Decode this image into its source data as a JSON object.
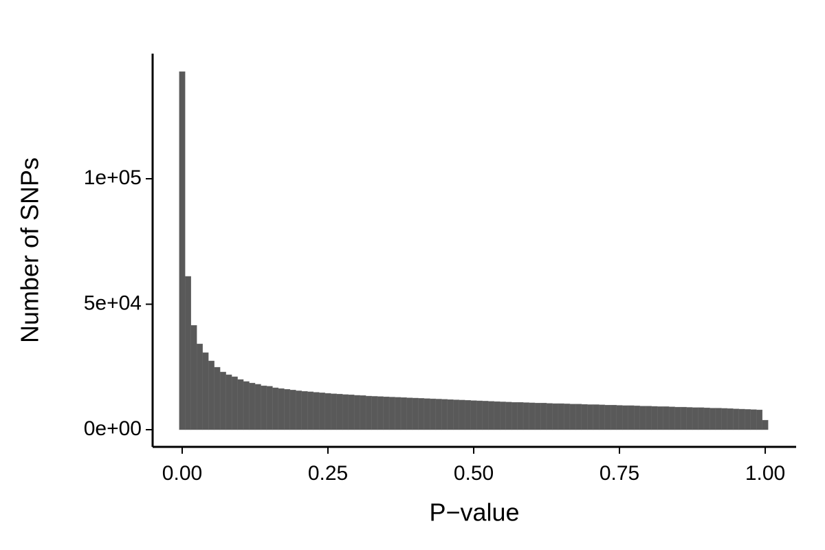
{
  "chart_data": {
    "type": "histogram",
    "x_label": "P−value",
    "y_label": "Number of SNPs",
    "color": "#595959",
    "bins": [
      -0.005,
      0.005,
      0.015,
      0.025,
      0.035,
      0.045,
      0.055,
      0.065,
      0.075,
      0.085,
      0.095,
      0.105,
      0.115,
      0.125,
      0.135,
      0.145,
      0.155,
      0.165,
      0.175,
      0.185,
      0.195,
      0.205,
      0.215,
      0.225,
      0.235,
      0.245,
      0.255,
      0.265,
      0.275,
      0.285,
      0.295,
      0.305,
      0.315,
      0.325,
      0.335,
      0.345,
      0.355,
      0.365,
      0.375,
      0.385,
      0.395,
      0.405,
      0.415,
      0.425,
      0.435,
      0.445,
      0.455,
      0.465,
      0.475,
      0.485,
      0.495,
      0.505,
      0.515,
      0.525,
      0.535,
      0.545,
      0.555,
      0.565,
      0.575,
      0.585,
      0.595,
      0.605,
      0.615,
      0.625,
      0.635,
      0.645,
      0.655,
      0.665,
      0.675,
      0.685,
      0.695,
      0.705,
      0.715,
      0.725,
      0.735,
      0.745,
      0.755,
      0.765,
      0.775,
      0.785,
      0.795,
      0.805,
      0.815,
      0.825,
      0.835,
      0.845,
      0.855,
      0.865,
      0.875,
      0.885,
      0.895,
      0.905,
      0.915,
      0.925,
      0.935,
      0.945,
      0.955,
      0.965,
      0.975,
      0.985,
      0.995,
      1.005
    ],
    "counts": [
      142700,
      61100,
      41600,
      34200,
      30700,
      27400,
      24900,
      23000,
      21900,
      21100,
      20000,
      19200,
      18600,
      18100,
      17500,
      17300,
      16700,
      16400,
      16100,
      15800,
      15500,
      15300,
      15100,
      14900,
      14700,
      14500,
      14300,
      14200,
      14000,
      13900,
      13700,
      13600,
      13400,
      13300,
      13200,
      13100,
      13000,
      12900,
      12800,
      12700,
      12600,
      12500,
      12400,
      12300,
      12200,
      12100,
      12000,
      11900,
      11800,
      11700,
      11600,
      11500,
      11400,
      11300,
      11200,
      11100,
      11000,
      10900,
      10900,
      10800,
      10700,
      10600,
      10600,
      10500,
      10400,
      10400,
      10300,
      10200,
      10200,
      10100,
      10000,
      10000,
      9900,
      9800,
      9800,
      9700,
      9600,
      9600,
      9500,
      9400,
      9400,
      9300,
      9200,
      9200,
      9100,
      9000,
      9000,
      8900,
      8800,
      8800,
      8700,
      8600,
      8600,
      8500,
      8400,
      8300,
      8200,
      8100,
      8000,
      7900,
      3800
    ],
    "xlim": [
      -0.0507,
      1.053
    ],
    "ylim": [
      -6850,
      149860
    ],
    "xticks": [
      {
        "value": 0,
        "label": "0.00"
      },
      0.25,
      {
        "value": 0.5,
        "label": "0.50"
      },
      0.75,
      {
        "value": 1,
        "label": "1.00"
      }
    ],
    "yticks": [
      {
        "value": 0,
        "label": "0e+00"
      },
      {
        "value": 50000,
        "label": "5e+04"
      },
      {
        "value": 100000,
        "label": "1e+05"
      }
    ]
  }
}
